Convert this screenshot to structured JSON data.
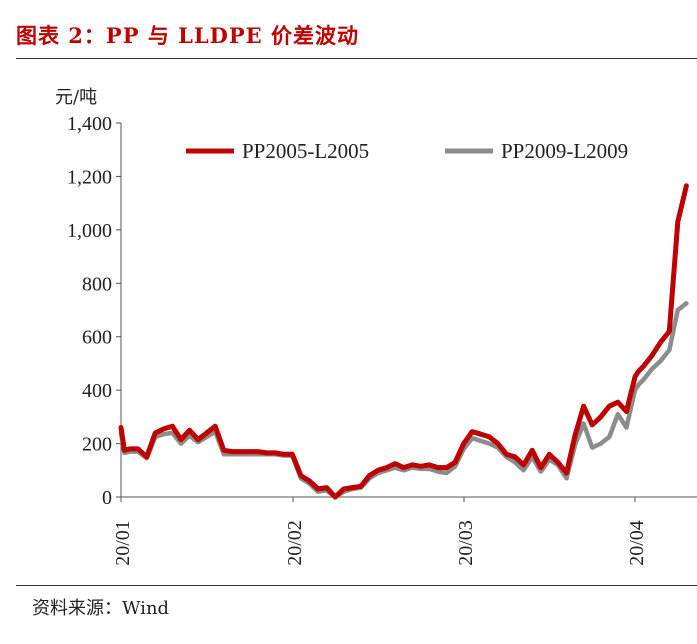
{
  "header": {
    "title": "图表 2：PP 与 LLDPE 价差波动"
  },
  "footer": {
    "source": "资料来源：Wind"
  },
  "colors": {
    "title": "#c00000",
    "series1": "#c00000",
    "series2": "#8c8c8c"
  },
  "chart_data": {
    "type": "line",
    "ylabel": "元/吨",
    "ylim": [
      0,
      1400
    ],
    "yticks": [
      0,
      200,
      400,
      600,
      800,
      1000,
      1200,
      1400
    ],
    "ytick_labels": [
      "0",
      "200",
      "400",
      "600",
      "800",
      "1,000",
      "1,200",
      "1,400"
    ],
    "xticks": [
      "20/01",
      "20/02",
      "20/03",
      "20/04"
    ],
    "xlim": [
      0,
      3.35
    ],
    "grid": false,
    "legend": "top",
    "series": [
      {
        "name": "PP2005-L2005",
        "x": [
          0,
          0.02,
          0.05,
          0.1,
          0.15,
          0.2,
          0.25,
          0.3,
          0.35,
          0.4,
          0.45,
          0.5,
          0.55,
          0.6,
          0.65,
          0.7,
          0.75,
          0.8,
          0.85,
          0.9,
          0.95,
          1.0,
          1.05,
          1.1,
          1.15,
          1.2,
          1.25,
          1.3,
          1.35,
          1.4,
          1.45,
          1.5,
          1.55,
          1.6,
          1.65,
          1.7,
          1.75,
          1.8,
          1.85,
          1.9,
          1.95,
          2.0,
          2.05,
          2.1,
          2.15,
          2.2,
          2.25,
          2.3,
          2.35,
          2.4,
          2.45,
          2.5,
          2.55,
          2.6,
          2.65,
          2.7,
          2.75,
          2.8,
          2.85,
          2.9,
          2.95,
          3.0,
          3.02,
          3.05,
          3.1,
          3.15,
          3.2,
          3.25,
          3.3
        ],
        "values": [
          260,
          175,
          180,
          180,
          150,
          240,
          255,
          265,
          215,
          250,
          215,
          240,
          265,
          175,
          170,
          170,
          170,
          170,
          165,
          165,
          160,
          160,
          80,
          60,
          30,
          35,
          0,
          30,
          35,
          40,
          80,
          100,
          110,
          125,
          110,
          120,
          115,
          120,
          110,
          110,
          130,
          200,
          245,
          235,
          225,
          200,
          160,
          150,
          120,
          175,
          110,
          160,
          130,
          90,
          230,
          340,
          270,
          300,
          340,
          355,
          320,
          450,
          470,
          490,
          530,
          580,
          620,
          1030,
          1165
        ]
      },
      {
        "name": "PP2009-L2009",
        "x": [
          0,
          0.02,
          0.05,
          0.1,
          0.15,
          0.2,
          0.25,
          0.3,
          0.35,
          0.4,
          0.45,
          0.5,
          0.55,
          0.6,
          0.65,
          0.7,
          0.75,
          0.8,
          0.85,
          0.9,
          0.95,
          1.0,
          1.05,
          1.1,
          1.15,
          1.2,
          1.25,
          1.3,
          1.35,
          1.4,
          1.45,
          1.5,
          1.55,
          1.6,
          1.65,
          1.7,
          1.75,
          1.8,
          1.85,
          1.9,
          1.95,
          2.0,
          2.05,
          2.1,
          2.15,
          2.2,
          2.25,
          2.3,
          2.35,
          2.4,
          2.45,
          2.5,
          2.55,
          2.6,
          2.65,
          2.7,
          2.75,
          2.8,
          2.85,
          2.9,
          2.95,
          3.0,
          3.02,
          3.05,
          3.1,
          3.15,
          3.2,
          3.25,
          3.3
        ],
        "values": [
          240,
          165,
          170,
          170,
          145,
          225,
          235,
          240,
          200,
          230,
          205,
          225,
          245,
          160,
          160,
          160,
          160,
          160,
          160,
          160,
          155,
          155,
          70,
          50,
          20,
          25,
          0,
          20,
          30,
          35,
          70,
          90,
          100,
          110,
          100,
          110,
          105,
          105,
          95,
          90,
          115,
          180,
          220,
          210,
          200,
          185,
          150,
          130,
          100,
          150,
          95,
          140,
          120,
          70,
          195,
          275,
          185,
          200,
          225,
          310,
          260,
          400,
          420,
          440,
          480,
          510,
          550,
          700,
          725
        ]
      }
    ]
  }
}
